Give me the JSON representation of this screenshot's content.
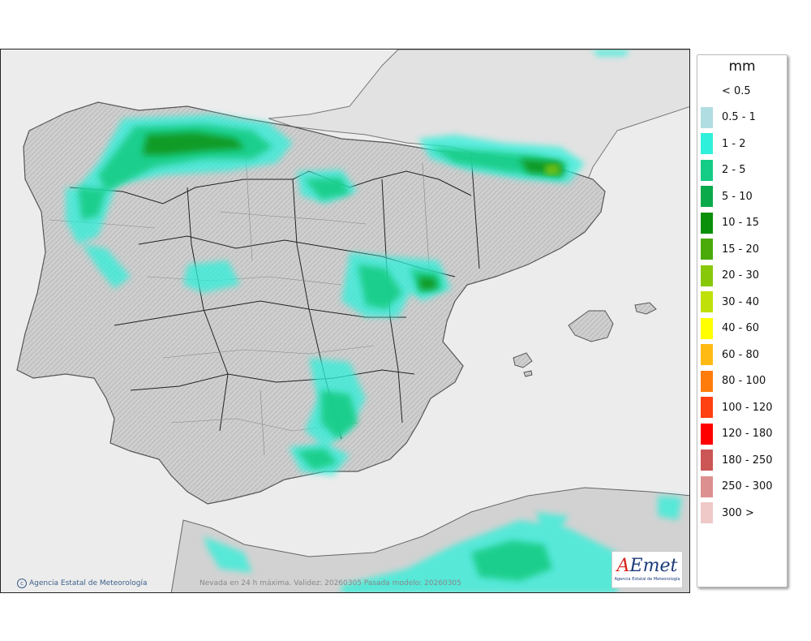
{
  "map": {
    "caption": "Nevada en 24 h máxima. Validez: 20260305 Pasada modelo: 20260305",
    "copyright": "Agencia Estatal de Meteorología",
    "logo_word_a": "A",
    "logo_word_b": "Emet",
    "logo_sub": "Agencia Estatal de Meteorología",
    "colors": {
      "land": "#c8c8c8",
      "sea": "#ececec",
      "border": "#222222",
      "outline": "#555555"
    }
  },
  "legend": {
    "unit": "mm",
    "items": [
      {
        "label": "< 0.5",
        "color": "#ffffff"
      },
      {
        "label": "0.5 - 1",
        "color": "#b0dde2"
      },
      {
        "label": "1 - 2",
        "color": "#2ff0da"
      },
      {
        "label": "2 - 5",
        "color": "#14cc85"
      },
      {
        "label": "5 - 10",
        "color": "#0aaa4a"
      },
      {
        "label": "10 - 15",
        "color": "#0a8f0a"
      },
      {
        "label": "15 - 20",
        "color": "#4aaa0a"
      },
      {
        "label": "20 - 30",
        "color": "#88c80a"
      },
      {
        "label": "30 - 40",
        "color": "#c0e00a"
      },
      {
        "label": "40 - 60",
        "color": "#ffff00"
      },
      {
        "label": "60 - 80",
        "color": "#ffbb14"
      },
      {
        "label": "80 - 100",
        "color": "#ff7c0a"
      },
      {
        "label": "100 - 120",
        "color": "#ff4010"
      },
      {
        "label": "120 - 180",
        "color": "#ff0000"
      },
      {
        "label": "180 - 250",
        "color": "#cc5555"
      },
      {
        "label": "250 - 300",
        "color": "#dd9090"
      },
      {
        "label": "300 >",
        "color": "#efc8c8"
      }
    ]
  }
}
